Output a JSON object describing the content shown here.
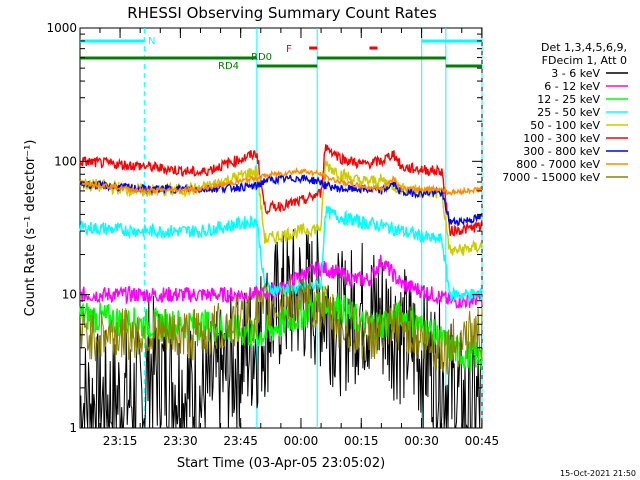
{
  "chart_data": {
    "type": "line",
    "title": "RHESSI Observing Summary Count Rates",
    "xlabel": "Start Time (03-Apr-05 23:05:02)",
    "ylabel": "Count Rate (s⁻¹ detector⁻¹)",
    "yscale": "log",
    "ylim": [
      1,
      1000
    ],
    "xlim_minutes_after_start": [
      0,
      100
    ],
    "x_tick_labels": [
      "23:15",
      "23:30",
      "23:45",
      "00:00",
      "00:15",
      "00:30",
      "00:45"
    ],
    "y_tick_labels": [
      "1",
      "10",
      "100",
      "1000"
    ],
    "legend_header": [
      "Det 1,3,4,5,6,9,",
      "FDecim 1, Att 0"
    ],
    "legend_position": "right",
    "footer_date": "15-Oct-2021 21:50",
    "series": [
      {
        "name": "3 - 6 keV",
        "color": "#000000",
        "x": [
          0,
          16,
          17,
          30,
          45,
          50,
          55,
          60,
          65,
          70,
          75,
          80,
          88,
          92,
          96,
          100
        ],
        "y": [
          1.5,
          1.7,
          3,
          1.6,
          5,
          9,
          10,
          9,
          6,
          8,
          7,
          5,
          3,
          2,
          1.4,
          1.5
        ]
      },
      {
        "name": "6 - 12 keV",
        "color": "#ff00ff",
        "x": [
          0,
          16,
          30,
          45,
          50,
          55,
          60,
          63,
          68,
          72,
          75,
          80,
          88,
          92,
          96,
          100
        ],
        "y": [
          10,
          10,
          10,
          10,
          11,
          14,
          16,
          15,
          13,
          13,
          18,
          12,
          10,
          9,
          9,
          9.5
        ]
      },
      {
        "name": "12 - 25 keV",
        "color": "#00ff00",
        "x": [
          0,
          16,
          30,
          45,
          50,
          55,
          60,
          65,
          70,
          75,
          80,
          88,
          92,
          96,
          100
        ],
        "y": [
          7,
          6,
          6,
          5,
          6,
          7,
          9,
          8,
          6,
          6,
          7,
          5,
          4,
          3.5,
          3.5
        ]
      },
      {
        "name": "25 - 50 keV",
        "color": "#00ffff",
        "x": [
          0,
          16,
          30,
          44,
          46,
          55,
          60,
          61,
          65,
          70,
          75,
          80,
          88,
          90,
          92,
          96,
          100
        ],
        "y": [
          32,
          30,
          30,
          36,
          11,
          11,
          12,
          42,
          38,
          35,
          33,
          30,
          26,
          26,
          10,
          10,
          10
        ]
      },
      {
        "name": "50 - 100 keV",
        "color": "#cccc00",
        "x": [
          0,
          16,
          30,
          44,
          46,
          55,
          60,
          61,
          65,
          70,
          75,
          80,
          88,
          90,
          92,
          96,
          100
        ],
        "y": [
          68,
          60,
          62,
          85,
          26,
          30,
          32,
          95,
          80,
          70,
          72,
          62,
          58,
          58,
          21,
          22,
          23
        ]
      },
      {
        "name": "100 - 300 keV",
        "color": "#ff0000",
        "x": [
          0,
          16,
          30,
          44,
          46,
          55,
          60,
          61,
          65,
          70,
          75,
          78,
          80,
          88,
          90,
          92,
          96,
          100
        ],
        "y": [
          100,
          92,
          82,
          115,
          44,
          50,
          58,
          130,
          105,
          95,
          100,
          115,
          90,
          85,
          85,
          30,
          31,
          33
        ]
      },
      {
        "name": "300 - 800 keV",
        "color": "#0000ff",
        "x": [
          0,
          16,
          30,
          44,
          46,
          55,
          60,
          61,
          65,
          70,
          75,
          78,
          80,
          88,
          90,
          92,
          96,
          100
        ],
        "y": [
          68,
          62,
          62,
          65,
          72,
          75,
          70,
          66,
          62,
          62,
          60,
          68,
          58,
          58,
          58,
          35,
          36,
          38
        ]
      },
      {
        "name": "800 - 7000 keV",
        "color": "#ff8c00",
        "x": [
          0,
          16,
          30,
          44,
          46,
          55,
          60,
          61,
          65,
          70,
          75,
          78,
          80,
          88,
          90,
          92,
          96,
          100
        ],
        "y": [
          70,
          60,
          62,
          75,
          78,
          85,
          80,
          76,
          70,
          65,
          62,
          75,
          62,
          62,
          62,
          58,
          60,
          62
        ]
      },
      {
        "name": "7000 - 15000 keV",
        "color": "#8b8000",
        "x": [
          0,
          16,
          30,
          44,
          46,
          55,
          60,
          65,
          70,
          75,
          80,
          88,
          92,
          96,
          100
        ],
        "y": [
          5,
          5,
          5,
          7,
          8,
          9,
          8,
          6,
          5,
          5,
          6,
          4,
          4,
          5,
          5
        ]
      }
    ],
    "flag_bars": {
      "N": {
        "label": "N",
        "color": "#00ffff",
        "segments": [
          [
            0,
            16
          ],
          [
            85,
            100
          ]
        ]
      },
      "F": {
        "label": "F",
        "color": "#ff0000",
        "segments": [
          [
            57,
            59
          ],
          [
            72,
            74
          ]
        ]
      },
      "RD0": {
        "label": "RD0",
        "color": "#008000",
        "segments": [
          [
            0,
            44
          ],
          [
            59,
            91
          ]
        ]
      },
      "RD4": {
        "label": "RD4",
        "color": "#008000",
        "segments": [
          [
            44,
            59
          ],
          [
            91,
            100
          ]
        ]
      }
    },
    "vertical_markers": {
      "solid": [
        44,
        59,
        85,
        91
      ],
      "dashed": [
        16,
        100
      ]
    }
  }
}
